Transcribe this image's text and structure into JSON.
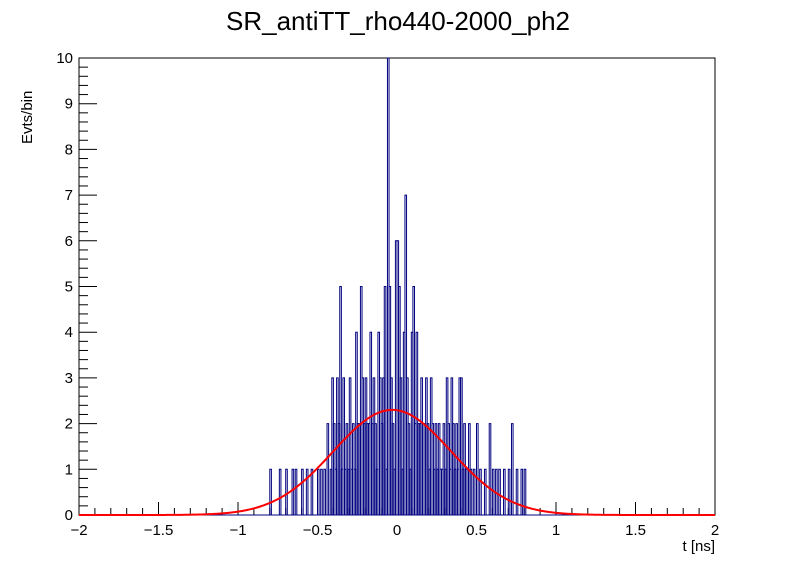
{
  "chart_data": {
    "type": "histogram",
    "title": "SR_antiTT_rho440-2000_ph2",
    "xlabel": "t [ns]",
    "ylabel": "Evts/bin",
    "xlim": [
      -2,
      2
    ],
    "ylim": [
      0,
      10
    ],
    "x_ticks": [
      -2,
      -1.5,
      -1,
      -0.5,
      0,
      0.5,
      1,
      1.5,
      2
    ],
    "x_tick_labels": [
      "−2",
      "−1.5",
      "−1",
      "−0.5",
      "0",
      "0.5",
      "1",
      "1.5",
      "2"
    ],
    "y_ticks": [
      0,
      1,
      2,
      3,
      4,
      5,
      6,
      7,
      8,
      9,
      10
    ],
    "y_tick_labels": [
      "0",
      "1",
      "2",
      "3",
      "4",
      "5",
      "6",
      "7",
      "8",
      "9",
      "10"
    ],
    "bin_width": 0.01,
    "histogram": {
      "name": "data",
      "color": "#00007f",
      "bins": [
        {
          "x": -0.8,
          "count": 1
        },
        {
          "x": -0.74,
          "count": 1
        },
        {
          "x": -0.7,
          "count": 1
        },
        {
          "x": -0.66,
          "count": 1
        },
        {
          "x": -0.64,
          "count": 1
        },
        {
          "x": -0.6,
          "count": 1
        },
        {
          "x": -0.57,
          "count": 1
        },
        {
          "x": -0.54,
          "count": 1
        },
        {
          "x": -0.5,
          "count": 1
        },
        {
          "x": -0.48,
          "count": 1
        },
        {
          "x": -0.46,
          "count": 1
        },
        {
          "x": -0.44,
          "count": 2
        },
        {
          "x": -0.42,
          "count": 1
        },
        {
          "x": -0.41,
          "count": 3
        },
        {
          "x": -0.4,
          "count": 2
        },
        {
          "x": -0.39,
          "count": 1
        },
        {
          "x": -0.38,
          "count": 3
        },
        {
          "x": -0.37,
          "count": 2
        },
        {
          "x": -0.36,
          "count": 5
        },
        {
          "x": -0.35,
          "count": 1
        },
        {
          "x": -0.34,
          "count": 3
        },
        {
          "x": -0.33,
          "count": 1
        },
        {
          "x": -0.32,
          "count": 2
        },
        {
          "x": -0.31,
          "count": 1
        },
        {
          "x": -0.3,
          "count": 3
        },
        {
          "x": -0.29,
          "count": 1
        },
        {
          "x": -0.28,
          "count": 2
        },
        {
          "x": -0.27,
          "count": 1
        },
        {
          "x": -0.26,
          "count": 4
        },
        {
          "x": -0.25,
          "count": 2
        },
        {
          "x": -0.24,
          "count": 2
        },
        {
          "x": -0.23,
          "count": 5
        },
        {
          "x": -0.22,
          "count": 3
        },
        {
          "x": -0.21,
          "count": 2
        },
        {
          "x": -0.2,
          "count": 3
        },
        {
          "x": -0.19,
          "count": 2
        },
        {
          "x": -0.18,
          "count": 2
        },
        {
          "x": -0.17,
          "count": 4
        },
        {
          "x": -0.16,
          "count": 2
        },
        {
          "x": -0.15,
          "count": 3
        },
        {
          "x": -0.14,
          "count": 2
        },
        {
          "x": -0.13,
          "count": 1
        },
        {
          "x": -0.12,
          "count": 4
        },
        {
          "x": -0.11,
          "count": 3
        },
        {
          "x": -0.1,
          "count": 2
        },
        {
          "x": -0.09,
          "count": 3
        },
        {
          "x": -0.08,
          "count": 5
        },
        {
          "x": -0.07,
          "count": 1
        },
        {
          "x": -0.06,
          "count": 10
        },
        {
          "x": -0.05,
          "count": 5
        },
        {
          "x": -0.04,
          "count": 3
        },
        {
          "x": -0.03,
          "count": 2
        },
        {
          "x": -0.02,
          "count": 1
        },
        {
          "x": -0.01,
          "count": 6
        },
        {
          "x": 0.0,
          "count": 6
        },
        {
          "x": 0.01,
          "count": 5
        },
        {
          "x": 0.02,
          "count": 3
        },
        {
          "x": 0.03,
          "count": 1
        },
        {
          "x": 0.04,
          "count": 4
        },
        {
          "x": 0.05,
          "count": 7
        },
        {
          "x": 0.06,
          "count": 3
        },
        {
          "x": 0.07,
          "count": 2
        },
        {
          "x": 0.08,
          "count": 1
        },
        {
          "x": 0.09,
          "count": 4
        },
        {
          "x": 0.1,
          "count": 5
        },
        {
          "x": 0.11,
          "count": 2
        },
        {
          "x": 0.12,
          "count": 4
        },
        {
          "x": 0.13,
          "count": 2
        },
        {
          "x": 0.14,
          "count": 2
        },
        {
          "x": 0.15,
          "count": 3
        },
        {
          "x": 0.16,
          "count": 2
        },
        {
          "x": 0.17,
          "count": 2
        },
        {
          "x": 0.18,
          "count": 3
        },
        {
          "x": 0.19,
          "count": 2
        },
        {
          "x": 0.2,
          "count": 1
        },
        {
          "x": 0.21,
          "count": 3
        },
        {
          "x": 0.22,
          "count": 2
        },
        {
          "x": 0.23,
          "count": 1
        },
        {
          "x": 0.24,
          "count": 2
        },
        {
          "x": 0.25,
          "count": 1
        },
        {
          "x": 0.26,
          "count": 2
        },
        {
          "x": 0.27,
          "count": 1
        },
        {
          "x": 0.28,
          "count": 1
        },
        {
          "x": 0.29,
          "count": 2
        },
        {
          "x": 0.3,
          "count": 1
        },
        {
          "x": 0.31,
          "count": 3
        },
        {
          "x": 0.32,
          "count": 2
        },
        {
          "x": 0.33,
          "count": 1
        },
        {
          "x": 0.34,
          "count": 3
        },
        {
          "x": 0.35,
          "count": 2
        },
        {
          "x": 0.36,
          "count": 1
        },
        {
          "x": 0.37,
          "count": 2
        },
        {
          "x": 0.38,
          "count": 1
        },
        {
          "x": 0.39,
          "count": 3
        },
        {
          "x": 0.4,
          "count": 3
        },
        {
          "x": 0.41,
          "count": 1
        },
        {
          "x": 0.42,
          "count": 2
        },
        {
          "x": 0.43,
          "count": 1
        },
        {
          "x": 0.44,
          "count": 1
        },
        {
          "x": 0.45,
          "count": 2
        },
        {
          "x": 0.46,
          "count": 1
        },
        {
          "x": 0.48,
          "count": 1
        },
        {
          "x": 0.5,
          "count": 2
        },
        {
          "x": 0.52,
          "count": 1
        },
        {
          "x": 0.55,
          "count": 1
        },
        {
          "x": 0.58,
          "count": 2
        },
        {
          "x": 0.6,
          "count": 1
        },
        {
          "x": 0.62,
          "count": 1
        },
        {
          "x": 0.64,
          "count": 1
        },
        {
          "x": 0.67,
          "count": 1
        },
        {
          "x": 0.7,
          "count": 1
        },
        {
          "x": 0.72,
          "count": 2
        },
        {
          "x": 0.75,
          "count": 1
        },
        {
          "x": 0.78,
          "count": 1
        },
        {
          "x": 0.8,
          "count": 1
        }
      ]
    },
    "fit": {
      "name": "gaussian-fit",
      "type": "gaussian",
      "color": "#ff0000",
      "amplitude": 2.3,
      "mean": -0.03,
      "sigma": 0.37
    }
  }
}
